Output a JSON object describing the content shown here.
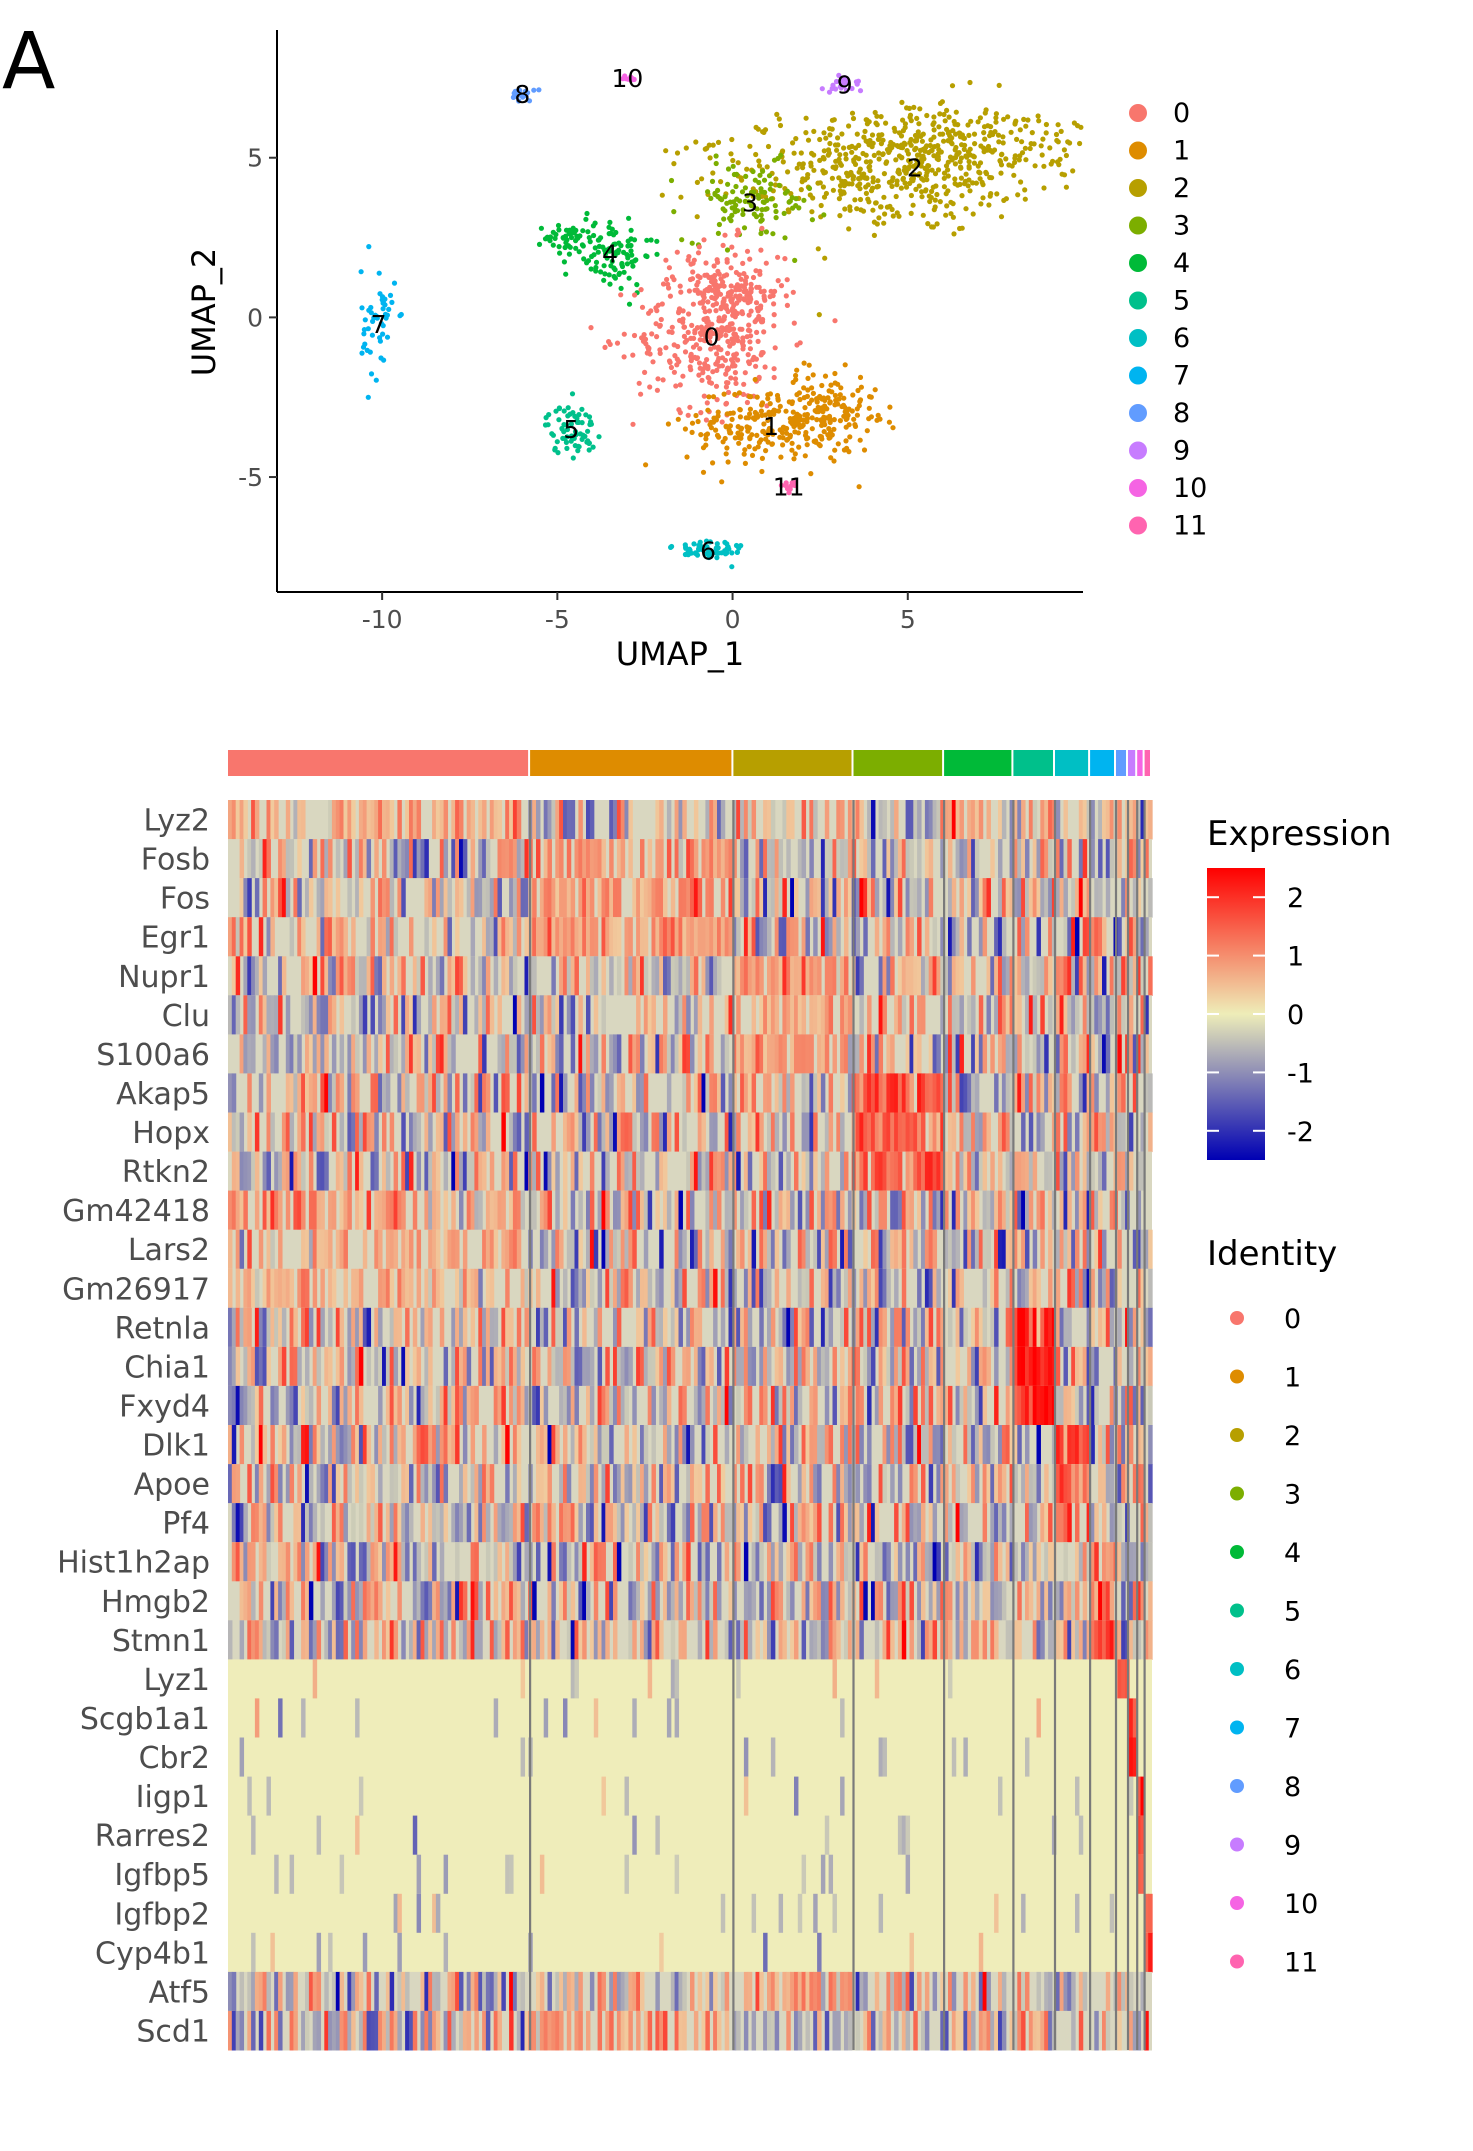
{
  "panel_label": "A",
  "chart_data": [
    {
      "type": "scatter",
      "subtype": "umap",
      "title": "",
      "xlabel": "UMAP_1",
      "ylabel": "UMAP_2",
      "xlim": [
        -13,
        10
      ],
      "ylim": [
        -8.6,
        9
      ],
      "xticks": [
        -10,
        -5,
        0,
        5
      ],
      "yticks": [
        -5,
        0,
        5
      ],
      "xtick_labels": [
        "-10",
        "-5",
        "0",
        "5"
      ],
      "ytick_labels": [
        "-5",
        "0",
        "5"
      ],
      "legend_position": "right",
      "clusters": [
        {
          "id": "0",
          "label": "0",
          "color": "#F8766D",
          "center": [
            -0.6,
            -0.6
          ]
        },
        {
          "id": "1",
          "label": "1",
          "color": "#DE8C00",
          "center": [
            1.1,
            -3.4
          ]
        },
        {
          "id": "2",
          "label": "2",
          "color": "#B79F00",
          "center": [
            5.2,
            4.7
          ]
        },
        {
          "id": "3",
          "label": "3",
          "color": "#7CAE00",
          "center": [
            0.5,
            3.6
          ]
        },
        {
          "id": "4",
          "label": "4",
          "color": "#00BA38",
          "center": [
            -3.5,
            2.0
          ]
        },
        {
          "id": "5",
          "label": "5",
          "color": "#00C08B",
          "center": [
            -4.6,
            -3.5
          ]
        },
        {
          "id": "6",
          "label": "6",
          "color": "#00BFC4",
          "center": [
            -0.7,
            -7.3
          ]
        },
        {
          "id": "7",
          "label": "7",
          "color": "#00B4F0",
          "center": [
            -10.1,
            -0.2
          ]
        },
        {
          "id": "8",
          "label": "8",
          "color": "#619CFF",
          "center": [
            -6.0,
            7.0
          ]
        },
        {
          "id": "9",
          "label": "9",
          "color": "#C77CFF",
          "center": [
            3.2,
            7.3
          ]
        },
        {
          "id": "10",
          "label": "10",
          "color": "#F564E3",
          "center": [
            -3.0,
            7.5
          ]
        },
        {
          "id": "11",
          "label": "11",
          "color": "#FF64B0",
          "center": [
            1.6,
            -5.3
          ]
        }
      ]
    },
    {
      "type": "heatmap",
      "title": "",
      "genes": [
        "Lyz2",
        "Fosb",
        "Fos",
        "Egr1",
        "Nupr1",
        "Clu",
        "S100a6",
        "Akap5",
        "Hopx",
        "Rtkn2",
        "Gm42418",
        "Lars2",
        "Gm26917",
        "Retnla",
        "Chia1",
        "Fxyd4",
        "Dlk1",
        "Apoe",
        "Pf4",
        "Hist1h2ap",
        "Hmgb2",
        "Stmn1",
        "Lyz1",
        "Scgb1a1",
        "Cbr2",
        "Iigp1",
        "Rarres2",
        "Igfbp5",
        "Igfbp2",
        "Cyp4b1",
        "Atf5",
        "Scd1"
      ],
      "cluster_order": [
        "0",
        "1",
        "2",
        "3",
        "4",
        "5",
        "6",
        "7",
        "8",
        "9",
        "10",
        "11"
      ],
      "cluster_fraction": [
        0.327,
        0.22,
        0.13,
        0.098,
        0.075,
        0.045,
        0.038,
        0.028,
        0.013,
        0.01,
        0.008,
        0.008
      ],
      "color_scale": {
        "low": "#0000B3",
        "mid": "#EEEDB8",
        "high": "#FF0000",
        "limits": [
          -2.5,
          2.5
        ]
      },
      "legend": {
        "expression_title": "Expression",
        "expression_ticks": [
          "2",
          "1",
          "0",
          "-1",
          "-2"
        ],
        "identity_title": "Identity",
        "identity_labels": [
          "0",
          "1",
          "2",
          "3",
          "4",
          "5",
          "6",
          "7",
          "8",
          "9",
          "10",
          "11"
        ]
      }
    }
  ]
}
